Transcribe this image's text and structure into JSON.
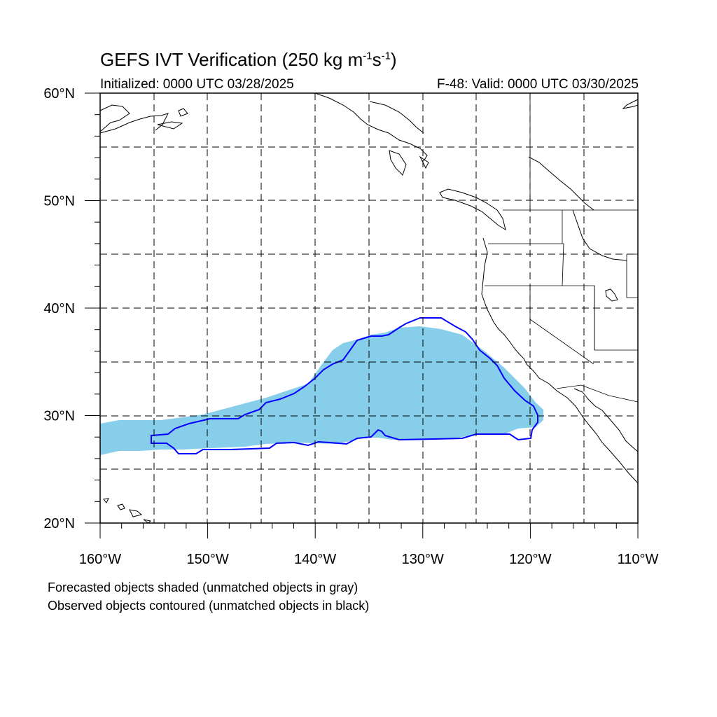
{
  "title": {
    "main": "GEFS IVT Verification (250 kg m",
    "sup1": "-1",
    "mid": "s",
    "sup2": "-1",
    "end": ")"
  },
  "subtitle_left": "Initialized: 0000 UTC 03/28/2025",
  "subtitle_right": "F-48: Valid: 0000 UTC 03/30/2025",
  "notes": {
    "line1": "Forecasted objects shaded (unmatched objects in gray)",
    "line2": "Observed objects contoured (unmatched objects in black)"
  },
  "map": {
    "lon_range": [
      -160,
      -110
    ],
    "lat_range": [
      20,
      60
    ],
    "grid": true,
    "lat_ticks": [
      {
        "label": "20",
        "lat": 20
      },
      {
        "label": "30",
        "lat": 30
      },
      {
        "label": "40",
        "lat": 40
      },
      {
        "label": "50",
        "lat": 50
      },
      {
        "label": "60",
        "lat": 60
      }
    ],
    "lon_ticks": [
      {
        "label": "160",
        "lon": -160
      },
      {
        "label": "150",
        "lon": -150
      },
      {
        "label": "140",
        "lon": -140
      },
      {
        "label": "130",
        "lon": -130
      },
      {
        "label": "120",
        "lon": -120
      },
      {
        "label": "110",
        "lon": -110
      }
    ],
    "lat_suffix": "N",
    "lon_suffix": "W",
    "forecast_color": "#87ceeb",
    "observed_color": "#0000ff"
  }
}
